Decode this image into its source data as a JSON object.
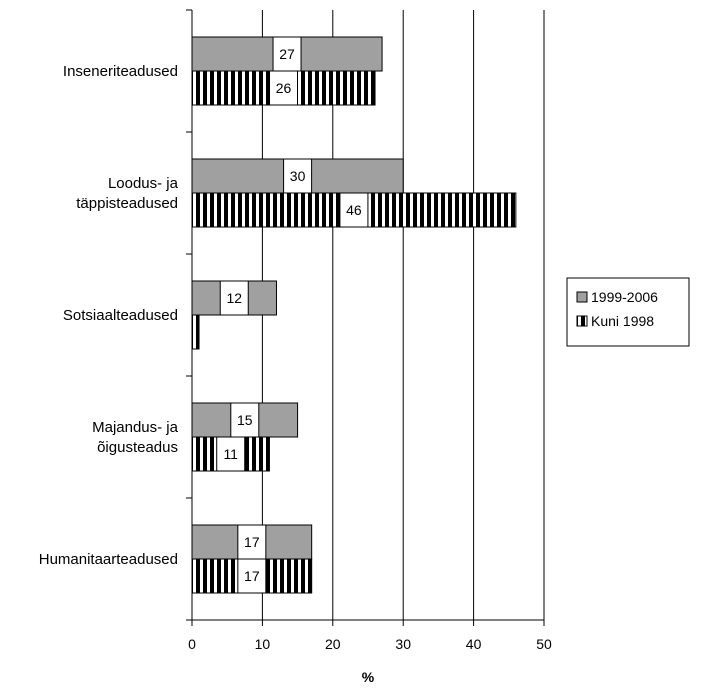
{
  "chart_data": {
    "type": "bar",
    "orientation": "horizontal",
    "categories": [
      [
        "Inseneriteadused"
      ],
      [
        "Loodus- ja",
        "täppisteadused"
      ],
      [
        "Sotsiaalteadused"
      ],
      [
        "Majandus- ja",
        "õigusteadus"
      ],
      [
        "Humanitaarteadused"
      ]
    ],
    "series": [
      {
        "name": "1999-2006",
        "values": [
          27,
          30,
          12,
          15,
          17
        ],
        "labels": [
          "27",
          "30",
          "12",
          "15",
          "17"
        ],
        "color": "#a0a0a0",
        "pattern": "solid"
      },
      {
        "name": "Kuni 1998",
        "values": [
          26,
          46,
          1,
          11,
          17
        ],
        "labels": [
          "26",
          "46",
          "",
          "11",
          "17"
        ],
        "color": "#000000",
        "pattern": "vertical-stripes"
      }
    ],
    "xlabel": "%",
    "xlim": [
      0,
      50
    ],
    "xticks": [
      "0",
      "10",
      "20",
      "30",
      "40",
      "50"
    ],
    "xtick_values": [
      0,
      10,
      20,
      30,
      40,
      50
    ],
    "grid": "vertical",
    "legend_position": "right"
  }
}
